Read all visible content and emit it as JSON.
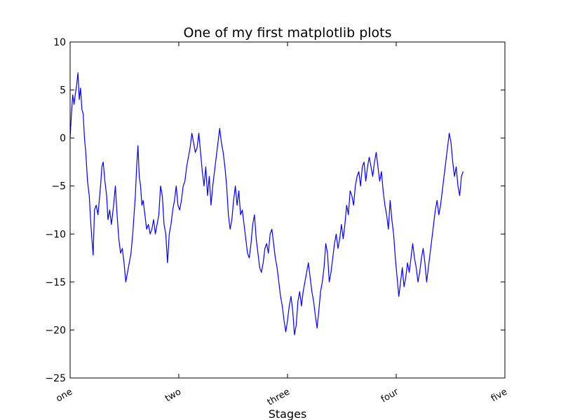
{
  "chart_data": {
    "type": "line",
    "title": "One of my first matplotlib plots",
    "xlabel": "Stages",
    "ylabel": "",
    "xlim": [
      0,
      1000
    ],
    "ylim": [
      -25,
      10
    ],
    "xticks": [
      {
        "value": 0,
        "label": "one"
      },
      {
        "value": 250,
        "label": "two"
      },
      {
        "value": 500,
        "label": "three"
      },
      {
        "value": 750,
        "label": "four"
      },
      {
        "value": 1000,
        "label": "five"
      }
    ],
    "yticks": [
      {
        "value": 10,
        "label": "10"
      },
      {
        "value": 5,
        "label": "5"
      },
      {
        "value": 0,
        "label": "0"
      },
      {
        "value": -5,
        "label": "−5"
      },
      {
        "value": -10,
        "label": "−10"
      },
      {
        "value": -15,
        "label": "−15"
      },
      {
        "value": -20,
        "label": "−20"
      },
      {
        "value": -25,
        "label": "−25"
      }
    ],
    "grid": false,
    "series": [
      {
        "color": "#0000ff",
        "points": [
          [
            0,
            0.0
          ],
          [
            3,
            2.5
          ],
          [
            6,
            4.5
          ],
          [
            9,
            3.5
          ],
          [
            12,
            4.6
          ],
          [
            15,
            5.5
          ],
          [
            18,
            6.8
          ],
          [
            21,
            4.0
          ],
          [
            24,
            5.2
          ],
          [
            27,
            3.0
          ],
          [
            30,
            2.5
          ],
          [
            33,
            0.0
          ],
          [
            36,
            -1.5
          ],
          [
            40,
            -4.5
          ],
          [
            44,
            -6.0
          ],
          [
            47,
            -8.5
          ],
          [
            50,
            -10.5
          ],
          [
            53,
            -12.2
          ],
          [
            56,
            -7.5
          ],
          [
            60,
            -7.0
          ],
          [
            64,
            -8.0
          ],
          [
            67,
            -6.5
          ],
          [
            70,
            -5.0
          ],
          [
            73,
            -3.0
          ],
          [
            76,
            -2.5
          ],
          [
            80,
            -4.5
          ],
          [
            84,
            -6.0
          ],
          [
            87,
            -8.5
          ],
          [
            91,
            -7.5
          ],
          [
            95,
            -9.0
          ],
          [
            100,
            -7.0
          ],
          [
            104,
            -5.0
          ],
          [
            108,
            -8.0
          ],
          [
            112,
            -10.5
          ],
          [
            116,
            -12.0
          ],
          [
            120,
            -11.5
          ],
          [
            124,
            -13.0
          ],
          [
            128,
            -15.0
          ],
          [
            132,
            -14.0
          ],
          [
            136,
            -13.0
          ],
          [
            140,
            -12.0
          ],
          [
            144,
            -10.0
          ],
          [
            147,
            -8.0
          ],
          [
            150,
            -6.0
          ],
          [
            153,
            -3.0
          ],
          [
            156,
            -0.8
          ],
          [
            159,
            -4.0
          ],
          [
            162,
            -5.0
          ],
          [
            165,
            -7.0
          ],
          [
            168,
            -6.5
          ],
          [
            172,
            -8.0
          ],
          [
            176,
            -9.5
          ],
          [
            180,
            -9.0
          ],
          [
            184,
            -10.0
          ],
          [
            188,
            -9.5
          ],
          [
            192,
            -8.5
          ],
          [
            196,
            -10.0
          ],
          [
            200,
            -9.0
          ],
          [
            204,
            -8.0
          ],
          [
            208,
            -5.0
          ],
          [
            212,
            -6.0
          ],
          [
            216,
            -9.0
          ],
          [
            220,
            -10.0
          ],
          [
            224,
            -13.0
          ],
          [
            228,
            -10.0
          ],
          [
            232,
            -9.0
          ],
          [
            236,
            -7.5
          ],
          [
            240,
            -6.5
          ],
          [
            244,
            -5.0
          ],
          [
            248,
            -7.0
          ],
          [
            252,
            -7.5
          ],
          [
            256,
            -6.5
          ],
          [
            260,
            -5.0
          ],
          [
            264,
            -4.5
          ],
          [
            268,
            -3.0
          ],
          [
            272,
            -2.0
          ],
          [
            276,
            -1.0
          ],
          [
            280,
            0.5
          ],
          [
            284,
            -0.5
          ],
          [
            288,
            -1.5
          ],
          [
            292,
            -1.0
          ],
          [
            296,
            0.5
          ],
          [
            300,
            -1.5
          ],
          [
            304,
            -3.5
          ],
          [
            308,
            -5.0
          ],
          [
            312,
            -3.0
          ],
          [
            316,
            -6.0
          ],
          [
            320,
            -4.0
          ],
          [
            324,
            -7.0
          ],
          [
            328,
            -5.0
          ],
          [
            332,
            -3.5
          ],
          [
            336,
            -2.0
          ],
          [
            340,
            -0.5
          ],
          [
            344,
            1.0
          ],
          [
            348,
            -0.5
          ],
          [
            352,
            -1.5
          ],
          [
            356,
            -3.0
          ],
          [
            360,
            -5.0
          ],
          [
            364,
            -8.0
          ],
          [
            368,
            -9.5
          ],
          [
            372,
            -8.5
          ],
          [
            376,
            -6.5
          ],
          [
            380,
            -5.0
          ],
          [
            384,
            -7.0
          ],
          [
            388,
            -5.5
          ],
          [
            392,
            -8.0
          ],
          [
            396,
            -7.5
          ],
          [
            400,
            -9.0
          ],
          [
            404,
            -10.5
          ],
          [
            408,
            -12.0
          ],
          [
            412,
            -12.5
          ],
          [
            416,
            -11.0
          ],
          [
            420,
            -9.0
          ],
          [
            424,
            -8.0
          ],
          [
            428,
            -10.5
          ],
          [
            432,
            -12.0
          ],
          [
            436,
            -13.5
          ],
          [
            440,
            -14.0
          ],
          [
            444,
            -13.0
          ],
          [
            448,
            -11.5
          ],
          [
            452,
            -11.0
          ],
          [
            456,
            -12.0
          ],
          [
            460,
            -10.0
          ],
          [
            464,
            -9.5
          ],
          [
            468,
            -11.0
          ],
          [
            472,
            -12.5
          ],
          [
            476,
            -13.5
          ],
          [
            480,
            -15.0
          ],
          [
            484,
            -16.5
          ],
          [
            488,
            -17.5
          ],
          [
            492,
            -19.0
          ],
          [
            496,
            -20.2
          ],
          [
            500,
            -19.0
          ],
          [
            504,
            -17.5
          ],
          [
            508,
            -16.5
          ],
          [
            512,
            -18.0
          ],
          [
            516,
            -20.5
          ],
          [
            520,
            -19.5
          ],
          [
            524,
            -17.0
          ],
          [
            528,
            -16.0
          ],
          [
            532,
            -17.5
          ],
          [
            536,
            -16.0
          ],
          [
            540,
            -15.0
          ],
          [
            544,
            -14.0
          ],
          [
            548,
            -13.0
          ],
          [
            552,
            -14.5
          ],
          [
            556,
            -16.0
          ],
          [
            560,
            -17.0
          ],
          [
            564,
            -18.5
          ],
          [
            568,
            -19.8
          ],
          [
            572,
            -18.0
          ],
          [
            576,
            -16.0
          ],
          [
            580,
            -15.0
          ],
          [
            584,
            -13.5
          ],
          [
            588,
            -11.0
          ],
          [
            592,
            -12.0
          ],
          [
            596,
            -15.0
          ],
          [
            600,
            -14.0
          ],
          [
            604,
            -12.5
          ],
          [
            608,
            -11.0
          ],
          [
            612,
            -10.0
          ],
          [
            616,
            -11.5
          ],
          [
            620,
            -10.5
          ],
          [
            624,
            -9.0
          ],
          [
            628,
            -10.5
          ],
          [
            632,
            -9.0
          ],
          [
            636,
            -7.0
          ],
          [
            640,
            -8.0
          ],
          [
            644,
            -5.5
          ],
          [
            648,
            -6.0
          ],
          [
            652,
            -7.0
          ],
          [
            656,
            -5.0
          ],
          [
            660,
            -4.0
          ],
          [
            664,
            -3.5
          ],
          [
            668,
            -5.0
          ],
          [
            672,
            -3.0
          ],
          [
            676,
            -2.5
          ],
          [
            680,
            -4.5
          ],
          [
            684,
            -3.0
          ],
          [
            688,
            -2.0
          ],
          [
            692,
            -3.0
          ],
          [
            696,
            -4.0
          ],
          [
            700,
            -2.5
          ],
          [
            704,
            -1.5
          ],
          [
            708,
            -3.0
          ],
          [
            712,
            -4.5
          ],
          [
            716,
            -3.5
          ],
          [
            720,
            -5.5
          ],
          [
            724,
            -7.0
          ],
          [
            728,
            -8.0
          ],
          [
            732,
            -9.5
          ],
          [
            736,
            -6.5
          ],
          [
            740,
            -8.5
          ],
          [
            744,
            -10.0
          ],
          [
            748,
            -12.5
          ],
          [
            752,
            -14.5
          ],
          [
            756,
            -16.5
          ],
          [
            760,
            -15.0
          ],
          [
            764,
            -13.5
          ],
          [
            768,
            -15.5
          ],
          [
            772,
            -14.5
          ],
          [
            776,
            -13.0
          ],
          [
            780,
            -14.0
          ],
          [
            784,
            -12.5
          ],
          [
            788,
            -11.0
          ],
          [
            792,
            -12.5
          ],
          [
            796,
            -13.5
          ],
          [
            800,
            -15.0
          ],
          [
            804,
            -14.0
          ],
          [
            808,
            -12.5
          ],
          [
            812,
            -11.5
          ],
          [
            816,
            -13.0
          ],
          [
            820,
            -15.0
          ],
          [
            824,
            -13.5
          ],
          [
            828,
            -12.0
          ],
          [
            832,
            -10.5
          ],
          [
            836,
            -9.0
          ],
          [
            840,
            -7.5
          ],
          [
            844,
            -6.5
          ],
          [
            848,
            -8.0
          ],
          [
            852,
            -7.0
          ],
          [
            856,
            -5.5
          ],
          [
            860,
            -4.0
          ],
          [
            864,
            -2.5
          ],
          [
            868,
            -1.0
          ],
          [
            872,
            0.5
          ],
          [
            876,
            -0.5
          ],
          [
            880,
            -2.5
          ],
          [
            884,
            -4.0
          ],
          [
            888,
            -3.0
          ],
          [
            892,
            -5.0
          ],
          [
            896,
            -6.0
          ],
          [
            900,
            -4.0
          ],
          [
            904,
            -3.5
          ]
        ]
      }
    ]
  }
}
